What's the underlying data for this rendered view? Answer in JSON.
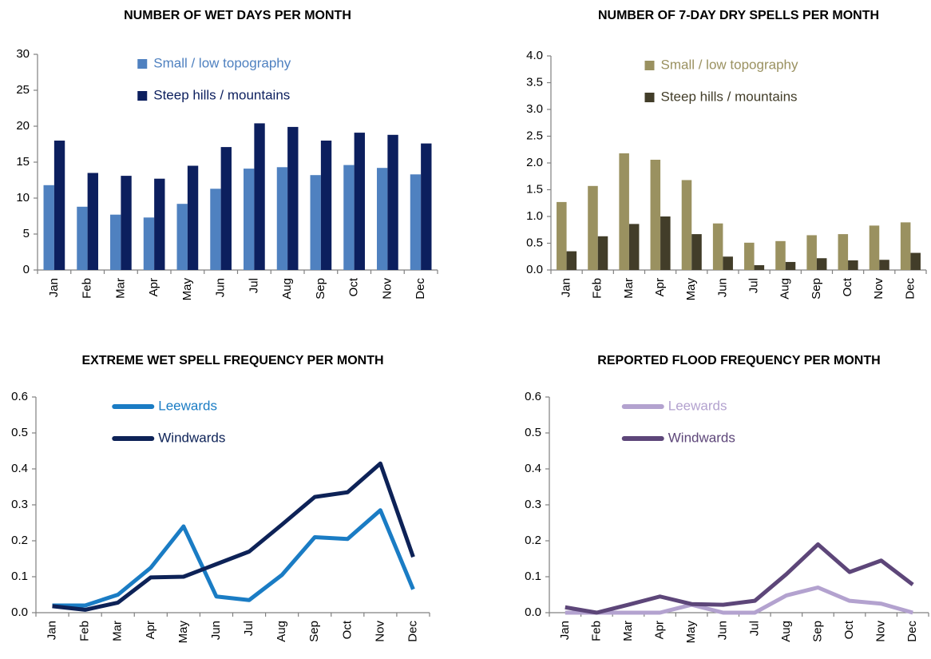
{
  "chart_data": [
    {
      "type": "bar",
      "title": "NUMBER OF WET DAYS PER MONTH",
      "categories": [
        "Jan",
        "Feb",
        "Mar",
        "Apr",
        "May",
        "Jun",
        "Jul",
        "Aug",
        "Sep",
        "Oct",
        "Nov",
        "Dec"
      ],
      "series": [
        {
          "name": "Small / low topography",
          "color": "#4f81c0",
          "values": [
            11.8,
            8.8,
            7.7,
            7.3,
            9.2,
            11.3,
            14.1,
            14.3,
            13.2,
            14.6,
            14.2,
            13.3
          ]
        },
        {
          "name": "Steep hills / mountains",
          "color": "#0c1f5e",
          "values": [
            18.0,
            13.5,
            13.1,
            12.7,
            14.5,
            17.1,
            20.4,
            19.9,
            18.0,
            19.1,
            18.8,
            17.6
          ]
        }
      ],
      "ylim": [
        0,
        30
      ],
      "yticks": [
        0,
        5,
        10,
        15,
        20,
        25,
        30
      ],
      "grid": false,
      "legend": "upper center"
    },
    {
      "type": "bar",
      "title": "NUMBER OF 7-DAY DRY SPELLS PER MONTH",
      "categories": [
        "Jan",
        "Feb",
        "Mar",
        "Apr",
        "May",
        "Jun",
        "Jul",
        "Aug",
        "Sep",
        "Oct",
        "Nov",
        "Dec"
      ],
      "series": [
        {
          "name": "Small / low topography",
          "color": "#9a9160",
          "values": [
            1.27,
            1.57,
            2.18,
            2.06,
            1.68,
            0.87,
            0.51,
            0.54,
            0.65,
            0.67,
            0.83,
            0.89
          ]
        },
        {
          "name": "Steep hills / mountains",
          "color": "#423d29",
          "values": [
            0.35,
            0.63,
            0.86,
            1.0,
            0.67,
            0.25,
            0.09,
            0.15,
            0.22,
            0.18,
            0.19,
            0.32
          ]
        }
      ],
      "ylim": [
        0,
        4
      ],
      "yticks": [
        {
          "value": 0,
          "label": "0.0"
        },
        0.5,
        {
          "value": 1,
          "label": "1.0"
        },
        1.5,
        {
          "value": 2,
          "label": "2.0"
        },
        2.5,
        {
          "value": 3,
          "label": "3.0"
        },
        3.5,
        {
          "value": 4,
          "label": "4.0"
        }
      ],
      "grid": false,
      "legend": "upper center"
    },
    {
      "type": "line",
      "title": "EXTREME WET SPELL FREQUENCY PER MONTH",
      "categories": [
        "Jan",
        "Feb",
        "Mar",
        "Apr",
        "May",
        "Jun",
        "Jul",
        "Aug",
        "Sep",
        "Oct",
        "Nov",
        "Dec"
      ],
      "series": [
        {
          "name": "Leewards",
          "color": "#1a7cc4",
          "values": [
            0.02,
            0.02,
            0.05,
            0.125,
            0.24,
            0.045,
            0.035,
            0.105,
            0.21,
            0.205,
            0.285,
            0.065
          ]
        },
        {
          "name": "Windwards",
          "color": "#0d2257",
          "values": [
            0.018,
            0.008,
            0.028,
            0.098,
            0.1,
            0.135,
            0.17,
            0.245,
            0.322,
            0.335,
            0.415,
            0.155
          ]
        }
      ],
      "ylim": [
        0,
        0.6
      ],
      "yticks": [
        {
          "value": 0,
          "label": "0.0"
        },
        0.1,
        0.2,
        0.3,
        0.4,
        0.5,
        0.6
      ],
      "grid": false,
      "legend": "upper center"
    },
    {
      "type": "line",
      "title": "REPORTED FLOOD FREQUENCY PER MONTH",
      "categories": [
        "Jan",
        "Feb",
        "Mar",
        "Apr",
        "May",
        "Jun",
        "Jul",
        "Aug",
        "Sep",
        "Oct",
        "Nov",
        "Dec"
      ],
      "series": [
        {
          "name": "Leewards",
          "color": "#b3a2cf",
          "values": [
            0.0,
            0.0,
            0.0,
            0.0,
            0.022,
            0.0,
            0.0,
            0.048,
            0.07,
            0.033,
            0.025,
            0.0
          ]
        },
        {
          "name": "Windwards",
          "color": "#5d4679",
          "values": [
            0.015,
            0.0,
            0.022,
            0.045,
            0.024,
            0.022,
            0.033,
            0.107,
            0.19,
            0.113,
            0.145,
            0.078
          ]
        }
      ],
      "ylim": [
        0,
        0.6
      ],
      "yticks": [
        {
          "value": 0,
          "label": "0.0"
        },
        0.1,
        0.2,
        0.3,
        0.4,
        0.5,
        0.6
      ],
      "grid": false,
      "legend": "upper center"
    }
  ]
}
